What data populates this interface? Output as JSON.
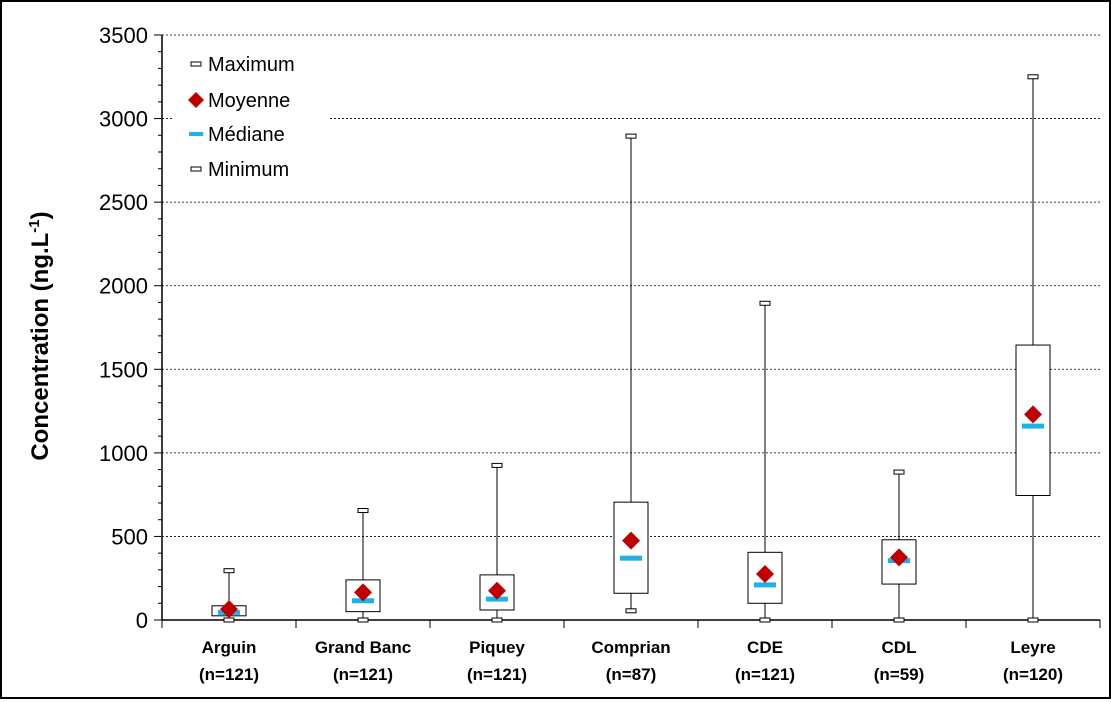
{
  "chart_data": {
    "type": "box",
    "ylabel": "Concentration (ng.L",
    "ylabel_sup": "-1",
    "ylabel_end": ")",
    "ylim": [
      0,
      3500
    ],
    "yticks": [
      0,
      500,
      1000,
      1500,
      2000,
      2500,
      3000,
      3500
    ],
    "grid": true,
    "legend_position": "top-left",
    "legend": {
      "maximum": "Maximum",
      "mean": "Moyenne",
      "median": "Médiane",
      "minimum": "Minimum"
    },
    "colors": {
      "mean": "#c00000",
      "median": "#1fb2e8",
      "box": "#000000"
    },
    "categories": [
      {
        "label": "Arguin",
        "n": "(n=121)",
        "min": 0,
        "q1": 25,
        "median": 45,
        "q3": 85,
        "max": 295,
        "mean": 65
      },
      {
        "label": "Grand Banc",
        "n": "(n=121)",
        "min": 0,
        "q1": 50,
        "median": 115,
        "q3": 240,
        "max": 655,
        "mean": 165
      },
      {
        "label": "Piquey",
        "n": "(n=121)",
        "min": 0,
        "q1": 60,
        "median": 125,
        "q3": 270,
        "max": 925,
        "mean": 175
      },
      {
        "label": "Comprian",
        "n": "(n=87)",
        "min": 55,
        "q1": 160,
        "median": 370,
        "q3": 705,
        "max": 2895,
        "mean": 475
      },
      {
        "label": "CDE",
        "n": "(n=121)",
        "min": 0,
        "q1": 100,
        "median": 210,
        "q3": 405,
        "max": 1895,
        "mean": 275
      },
      {
        "label": "CDL",
        "n": "(n=59)",
        "min": 0,
        "q1": 215,
        "median": 355,
        "q3": 480,
        "max": 885,
        "mean": 375
      },
      {
        "label": "Leyre",
        "n": "(n=120)",
        "min": 0,
        "q1": 745,
        "median": 1160,
        "q3": 1645,
        "max": 3250,
        "mean": 1230
      }
    ]
  }
}
